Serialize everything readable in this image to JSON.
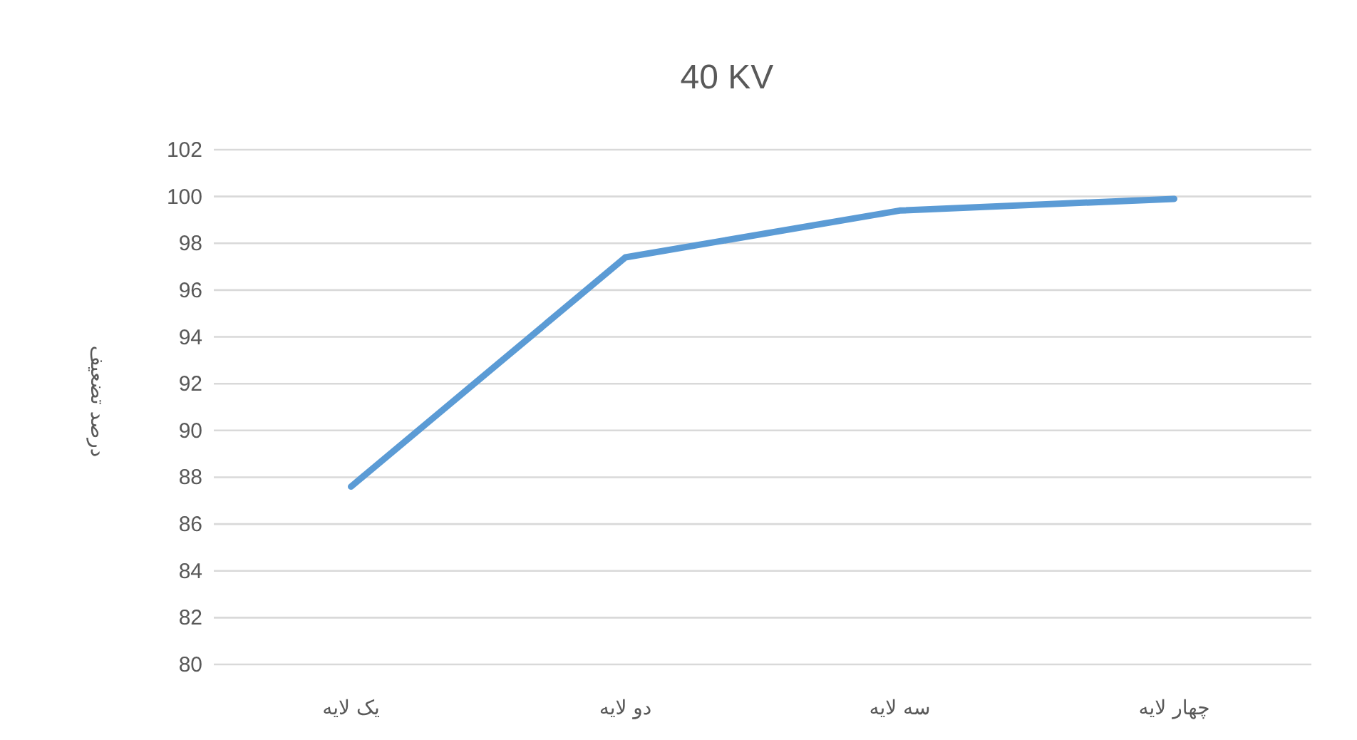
{
  "chart_data": {
    "type": "line",
    "title": "40 KV",
    "ylabel": "درصد تضعیف",
    "categories": [
      "یک لایه",
      "دو لایه",
      "سه لایه",
      "چهار لایه"
    ],
    "series": [
      {
        "color": "#5b9bd5",
        "values": [
          87.6,
          97.4,
          99.4,
          99.9
        ]
      }
    ],
    "ylim": [
      80,
      102
    ],
    "yticks": [
      80,
      82,
      84,
      86,
      88,
      90,
      92,
      94,
      96,
      98,
      100,
      102
    ],
    "grid": "y",
    "marker": "none",
    "line_style": "solid"
  }
}
